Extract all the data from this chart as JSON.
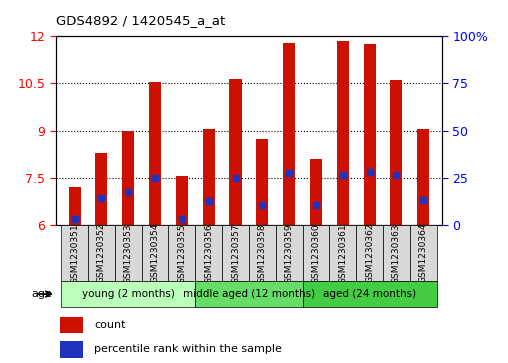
{
  "title": "GDS4892 / 1420545_a_at",
  "samples": [
    "GSM1230351",
    "GSM1230352",
    "GSM1230353",
    "GSM1230354",
    "GSM1230355",
    "GSM1230356",
    "GSM1230357",
    "GSM1230358",
    "GSM1230359",
    "GSM1230360",
    "GSM1230361",
    "GSM1230362",
    "GSM1230363",
    "GSM1230364"
  ],
  "bar_heights": [
    7.2,
    8.3,
    9.0,
    10.55,
    7.55,
    9.05,
    10.65,
    8.75,
    11.8,
    8.1,
    11.85,
    11.75,
    10.6,
    9.05
  ],
  "blue_dot_y": [
    6.2,
    6.85,
    7.05,
    7.5,
    6.2,
    6.75,
    7.5,
    6.65,
    7.65,
    6.65,
    7.6,
    7.7,
    7.6,
    6.8
  ],
  "bar_color": "#cc1100",
  "dot_color": "#2233bb",
  "ylim": [
    6,
    12
  ],
  "y_ticks_left": [
    6,
    7.5,
    9,
    10.5,
    12
  ],
  "y_ticks_right": [
    0,
    25,
    50,
    75,
    100
  ],
  "bar_width": 0.45,
  "groups": [
    {
      "label": "young (2 months)",
      "start": 0,
      "end": 4,
      "color": "#bbffbb"
    },
    {
      "label": "middle aged (12 months)",
      "start": 5,
      "end": 8,
      "color": "#66dd66"
    },
    {
      "label": "aged (24 months)",
      "start": 9,
      "end": 13,
      "color": "#44cc44"
    }
  ],
  "age_label": "age",
  "legend_count_label": "count",
  "legend_percentile_label": "percentile rank within the sample"
}
